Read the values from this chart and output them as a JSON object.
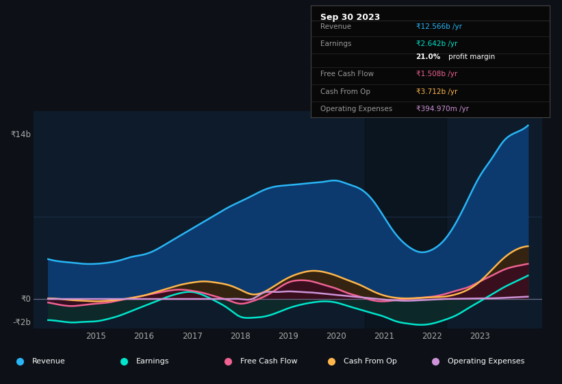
{
  "bg_color": "#0d1117",
  "plot_bg": "#0d1b2a",
  "ylabel_top": "₹14b",
  "ylabel_zero": "₹0",
  "ylabel_neg": "-₹2b",
  "ylim": [
    -2.5,
    16
  ],
  "xlim": [
    2013.7,
    2024.3
  ],
  "x_ticks": [
    2015,
    2016,
    2017,
    2018,
    2019,
    2020,
    2021,
    2022,
    2023
  ],
  "legend": [
    "Revenue",
    "Earnings",
    "Free Cash Flow",
    "Cash From Op",
    "Operating Expenses"
  ],
  "legend_colors": [
    "#29b6f6",
    "#00e5cc",
    "#f06292",
    "#ffb74d",
    "#ce93d8"
  ],
  "info_box": {
    "title": "Sep 30 2023",
    "rows": [
      {
        "label": "Revenue",
        "value": "₹12.566b /yr",
        "value_color": "#29b6f6"
      },
      {
        "label": "Earnings",
        "value": "₹2.642b /yr",
        "value_color": "#00e5cc"
      },
      {
        "label": "",
        "value": "21.0% profit margin",
        "value_color": "#ffffff"
      },
      {
        "label": "Free Cash Flow",
        "value": "₹1.508b /yr",
        "value_color": "#f06292"
      },
      {
        "label": "Cash From Op",
        "value": "₹3.712b /yr",
        "value_color": "#ffb74d"
      },
      {
        "label": "Operating Expenses",
        "value": "₹394.970m /yr",
        "value_color": "#ce93d8"
      }
    ]
  },
  "revenue": {
    "x": [
      2014.0,
      2014.25,
      2014.5,
      2014.75,
      2015.0,
      2015.25,
      2015.5,
      2015.75,
      2016.0,
      2016.25,
      2016.5,
      2016.75,
      2017.0,
      2017.25,
      2017.5,
      2017.75,
      2018.0,
      2018.25,
      2018.5,
      2018.75,
      2019.0,
      2019.25,
      2019.5,
      2019.75,
      2020.0,
      2020.25,
      2020.5,
      2020.75,
      2021.0,
      2021.25,
      2021.5,
      2021.75,
      2022.0,
      2022.25,
      2022.5,
      2022.75,
      2023.0,
      2023.25,
      2023.5,
      2023.75,
      2024.0
    ],
    "y": [
      3.4,
      3.2,
      3.1,
      3.0,
      3.0,
      3.1,
      3.3,
      3.6,
      3.8,
      4.2,
      4.8,
      5.4,
      6.0,
      6.6,
      7.2,
      7.8,
      8.3,
      8.8,
      9.3,
      9.6,
      9.7,
      9.8,
      9.9,
      10.0,
      10.1,
      9.8,
      9.4,
      8.5,
      7.0,
      5.5,
      4.5,
      4.0,
      4.2,
      5.0,
      6.5,
      8.5,
      10.5,
      12.0,
      13.5,
      14.2,
      14.8
    ]
  },
  "earnings": {
    "x": [
      2014.0,
      2014.25,
      2014.5,
      2014.75,
      2015.0,
      2015.25,
      2015.5,
      2015.75,
      2016.0,
      2016.25,
      2016.5,
      2016.75,
      2017.0,
      2017.25,
      2017.5,
      2017.75,
      2018.0,
      2018.25,
      2018.5,
      2018.75,
      2019.0,
      2019.25,
      2019.5,
      2019.75,
      2020.0,
      2020.25,
      2020.5,
      2020.75,
      2021.0,
      2021.25,
      2021.5,
      2021.75,
      2022.0,
      2022.25,
      2022.5,
      2022.75,
      2023.0,
      2023.25,
      2023.5,
      2023.75,
      2024.0
    ],
    "y": [
      -1.8,
      -1.9,
      -2.0,
      -1.95,
      -1.9,
      -1.7,
      -1.4,
      -1.0,
      -0.6,
      -0.2,
      0.2,
      0.5,
      0.6,
      0.3,
      -0.2,
      -0.8,
      -1.5,
      -1.6,
      -1.5,
      -1.2,
      -0.8,
      -0.5,
      -0.3,
      -0.2,
      -0.3,
      -0.6,
      -0.9,
      -1.2,
      -1.5,
      -1.9,
      -2.1,
      -2.2,
      -2.1,
      -1.8,
      -1.4,
      -0.8,
      -0.2,
      0.4,
      1.0,
      1.5,
      2.0
    ]
  },
  "free_cash_flow": {
    "x": [
      2014.0,
      2014.25,
      2014.5,
      2014.75,
      2015.0,
      2015.25,
      2015.5,
      2015.75,
      2016.0,
      2016.25,
      2016.5,
      2016.75,
      2017.0,
      2017.25,
      2017.5,
      2017.75,
      2018.0,
      2018.25,
      2018.5,
      2018.75,
      2019.0,
      2019.25,
      2019.5,
      2019.75,
      2020.0,
      2020.25,
      2020.5,
      2020.75,
      2021.0,
      2021.25,
      2021.5,
      2021.75,
      2022.0,
      2022.25,
      2022.5,
      2022.75,
      2023.0,
      2023.25,
      2023.5,
      2023.75,
      2024.0
    ],
    "y": [
      -0.3,
      -0.5,
      -0.6,
      -0.5,
      -0.4,
      -0.3,
      -0.1,
      0.1,
      0.3,
      0.5,
      0.7,
      0.8,
      0.7,
      0.5,
      0.2,
      -0.1,
      -0.4,
      -0.2,
      0.2,
      0.8,
      1.4,
      1.6,
      1.5,
      1.2,
      0.9,
      0.5,
      0.2,
      -0.1,
      -0.2,
      -0.1,
      0.0,
      0.1,
      0.2,
      0.4,
      0.7,
      1.0,
      1.5,
      2.0,
      2.5,
      2.8,
      3.0
    ]
  },
  "cash_from_op": {
    "x": [
      2014.0,
      2014.25,
      2014.5,
      2014.75,
      2015.0,
      2015.25,
      2015.5,
      2015.75,
      2016.0,
      2016.25,
      2016.5,
      2016.75,
      2017.0,
      2017.25,
      2017.5,
      2017.75,
      2018.0,
      2018.25,
      2018.5,
      2018.75,
      2019.0,
      2019.25,
      2019.5,
      2019.75,
      2020.0,
      2020.25,
      2020.5,
      2020.75,
      2021.0,
      2021.25,
      2021.5,
      2021.75,
      2022.0,
      2022.25,
      2022.5,
      2022.75,
      2023.0,
      2023.25,
      2023.5,
      2023.75,
      2024.0
    ],
    "y": [
      0.05,
      0.0,
      -0.1,
      -0.15,
      -0.2,
      -0.15,
      -0.05,
      0.1,
      0.3,
      0.6,
      0.9,
      1.2,
      1.4,
      1.5,
      1.4,
      1.2,
      0.8,
      0.4,
      0.6,
      1.2,
      1.8,
      2.2,
      2.4,
      2.3,
      2.0,
      1.6,
      1.2,
      0.7,
      0.3,
      0.1,
      0.05,
      0.1,
      0.15,
      0.2,
      0.4,
      0.8,
      1.5,
      2.5,
      3.5,
      4.2,
      4.5
    ]
  },
  "operating_expenses": {
    "x": [
      2014.0,
      2014.25,
      2014.5,
      2014.75,
      2015.0,
      2015.25,
      2015.5,
      2015.75,
      2016.0,
      2016.25,
      2016.5,
      2016.75,
      2017.0,
      2017.25,
      2017.5,
      2017.75,
      2018.0,
      2018.25,
      2018.5,
      2018.75,
      2019.0,
      2019.25,
      2019.5,
      2019.75,
      2020.0,
      2020.25,
      2020.5,
      2020.75,
      2021.0,
      2021.25,
      2021.5,
      2021.75,
      2022.0,
      2022.25,
      2022.5,
      2022.75,
      2023.0,
      2023.25,
      2023.5,
      2023.75,
      2024.0
    ],
    "y": [
      0.0,
      0.0,
      0.0,
      0.0,
      0.0,
      0.0,
      0.0,
      0.0,
      0.0,
      0.0,
      0.0,
      0.0,
      0.0,
      0.0,
      0.0,
      0.0,
      0.0,
      0.0,
      0.55,
      0.6,
      0.65,
      0.6,
      0.55,
      0.45,
      0.35,
      0.25,
      0.15,
      0.05,
      -0.05,
      -0.12,
      -0.15,
      -0.1,
      -0.05,
      0.0,
      0.02,
      0.04,
      0.05,
      0.06,
      0.1,
      0.15,
      0.2
    ]
  }
}
